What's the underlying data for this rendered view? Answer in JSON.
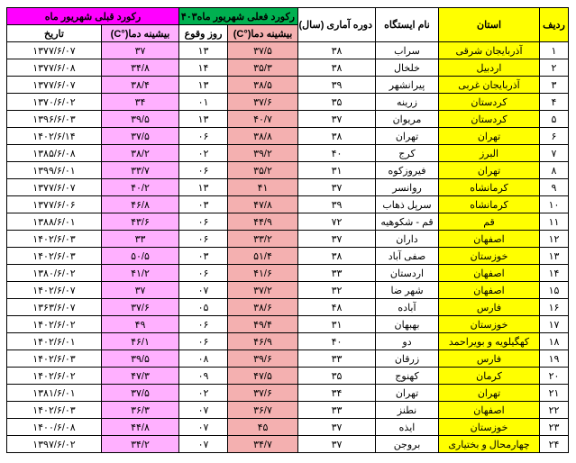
{
  "headers": {
    "row": "ردیف",
    "province": "استان",
    "station": "نام ایستگاه",
    "period": "دوره آماری (سال)",
    "current_group": "رکورد فعلی  شهریور ماه۱۴۰۳",
    "current_temp": "بیشینه دما(°C)",
    "current_day": "روز وقوع",
    "prev_group": "رکورد قبلی  شهریور ماه",
    "prev_temp": "بیشینه دما(°C)",
    "prev_date": "تاریخ"
  },
  "rows": [
    {
      "n": "۱",
      "prov": "آذربایجان شرقی",
      "st": "سراب",
      "period": "۳۸",
      "ct": "۳۷/۵",
      "cd": "۱۳",
      "pt": "۳۷",
      "pd": "۱۳۷۷/۶/۰۷"
    },
    {
      "n": "۲",
      "prov": "اردبیل",
      "st": "خلخال",
      "period": "۳۸",
      "ct": "۳۵/۳",
      "cd": "۱۴",
      "pt": "۳۴/۸",
      "pd": "۱۳۷۷/۶/۰۸"
    },
    {
      "n": "۳",
      "prov": "آذربایجان غربی",
      "st": "پیرانشهر",
      "period": "۳۹",
      "ct": "۳۸/۵",
      "cd": "۱۳",
      "pt": "۳۸/۴",
      "pd": "۱۳۷۷/۶/۰۷"
    },
    {
      "n": "۴",
      "prov": "کردستان",
      "st": "زرینه",
      "period": "۳۵",
      "ct": "۳۷/۶",
      "cd": "۰۱",
      "pt": "۳۴",
      "pd": "۱۳۷۰/۶/۰۲"
    },
    {
      "n": "۵",
      "prov": "کردستان",
      "st": "مریوان",
      "period": "۳۷",
      "ct": "۴۰/۷",
      "cd": "۱۳",
      "pt": "۳۹/۵",
      "pd": "۱۳۹۶/۶/۰۳"
    },
    {
      "n": "۶",
      "prov": "تهران",
      "st": "تهران",
      "period": "۳۸",
      "ct": "۳۸/۸",
      "cd": "۰۶",
      "pt": "۳۷/۵",
      "pd": "۱۴۰۲/۶/۱۴"
    },
    {
      "n": "۷",
      "prov": "البرز",
      "st": "کرج",
      "period": "۴۰",
      "ct": "۳۹/۲",
      "cd": "۰۲",
      "pt": "۳۸/۲",
      "pd": "۱۳۸۵/۶/۰۸"
    },
    {
      "n": "۸",
      "prov": "تهران",
      "st": "فیروزکوه",
      "period": "۳۱",
      "ct": "۳۵/۲",
      "cd": "۰۶",
      "pt": "۳۳/۷",
      "pd": "۱۳۹۹/۶/۰۱"
    },
    {
      "n": "۹",
      "prov": "کرمانشاه",
      "st": "روانسر",
      "period": "۳۷",
      "ct": "۴۱",
      "cd": "۱۳",
      "pt": "۴۰/۲",
      "pd": "۱۳۷۷/۶/۰۷"
    },
    {
      "n": "۱۰",
      "prov": "کرمانشاه",
      "st": "سرپل ذهاب",
      "period": "۳۹",
      "ct": "۴۷/۸",
      "cd": "۰۳",
      "pt": "۴۶/۸",
      "pd": "۱۳۷۷/۶/۰۶"
    },
    {
      "n": "۱۱",
      "prov": "قم",
      "st": "قم - شکوهیه",
      "period": "۷۲",
      "ct": "۴۴/۹",
      "cd": "۰۶",
      "pt": "۴۳/۶",
      "pd": "۱۳۸۸/۶/۰۱"
    },
    {
      "n": "۱۲",
      "prov": "اصفهان",
      "st": "داران",
      "period": "۳۷",
      "ct": "۳۳/۲",
      "cd": "۰۶",
      "pt": "۳۳",
      "pd": "۱۴۰۲/۶/۰۳"
    },
    {
      "n": "۱۳",
      "prov": "خوزستان",
      "st": "صفی آباد",
      "period": "۳۸",
      "ct": "۵۱/۴",
      "cd": "۰۳",
      "pt": "۵۰/۵",
      "pd": "۱۴۰۲/۶/۰۳"
    },
    {
      "n": "۱۴",
      "prov": "اصفهان",
      "st": "اردستان",
      "period": "۳۳",
      "ct": "۴۱/۶",
      "cd": "۰۶",
      "pt": "۴۱/۲",
      "pd": "۱۳۸۰/۶/۰۲"
    },
    {
      "n": "۱۵",
      "prov": "اصفهان",
      "st": "شهر ضا",
      "period": "۳۲",
      "ct": "۳۷/۲",
      "cd": "۰۷",
      "pt": "۳۷",
      "pd": "۱۴۰۲/۶/۰۷"
    },
    {
      "n": "۱۶",
      "prov": "فارس",
      "st": "آباده",
      "period": "۴۸",
      "ct": "۳۸/۶",
      "cd": "۰۵",
      "pt": "۳۷/۶",
      "pd": "۱۳۶۳/۶/۰۷"
    },
    {
      "n": "۱۷",
      "prov": "خوزستان",
      "st": "بهبهان",
      "period": "۳۱",
      "ct": "۴۹/۴",
      "cd": "۰۶",
      "pt": "۴۹",
      "pd": "۱۴۰۲/۶/۰۲"
    },
    {
      "n": "۱۸",
      "prov": "کهگیلویه و بویراحمد",
      "st": "دو",
      "period": "۴۰",
      "ct": "۴۶/۹",
      "cd": "۰۶",
      "pt": "۴۶/۱",
      "pd": "۱۴۰۲/۶/۰۱"
    },
    {
      "n": "۱۹",
      "prov": "فارس",
      "st": "زرقان",
      "period": "۳۳",
      "ct": "۳۹/۶",
      "cd": "۰۸",
      "pt": "۳۹/۵",
      "pd": "۱۴۰۲/۶/۰۳"
    },
    {
      "n": "۲۰",
      "prov": "کرمان",
      "st": "کهنوج",
      "period": "۳۵",
      "ct": "۴۷/۵",
      "cd": "۰۹",
      "pt": "۴۷/۳",
      "pd": "۱۴۰۲/۶/۰۲"
    },
    {
      "n": "۲۱",
      "prov": "تهران",
      "st": "تهران",
      "period": "۳۴",
      "ct": "۳۷/۶",
      "cd": "۰۲",
      "pt": "۳۷/۵",
      "pd": "۱۳۸۱/۶/۰۱"
    },
    {
      "n": "۲۲",
      "prov": "اصفهان",
      "st": "نطنز",
      "period": "۳۳",
      "ct": "۳۶/۷",
      "cd": "۰۷",
      "pt": "۳۶/۳",
      "pd": "۱۴۰۲/۶/۰۳"
    },
    {
      "n": "۲۳",
      "prov": "خوزستان",
      "st": "ایذه",
      "period": "۳۷",
      "ct": "۴۵",
      "cd": "۰۷",
      "pt": "۴۴/۸",
      "pd": "۱۴۰۰/۶/۰۸"
    },
    {
      "n": "۲۴",
      "prov": "چهارمحال و بختیاری",
      "st": "بروجن",
      "period": "۳۷",
      "ct": "۳۴/۷",
      "cd": "۰۷",
      "pt": "۳۴/۲",
      "pd": "۱۳۹۷/۶/۰۲"
    }
  ]
}
